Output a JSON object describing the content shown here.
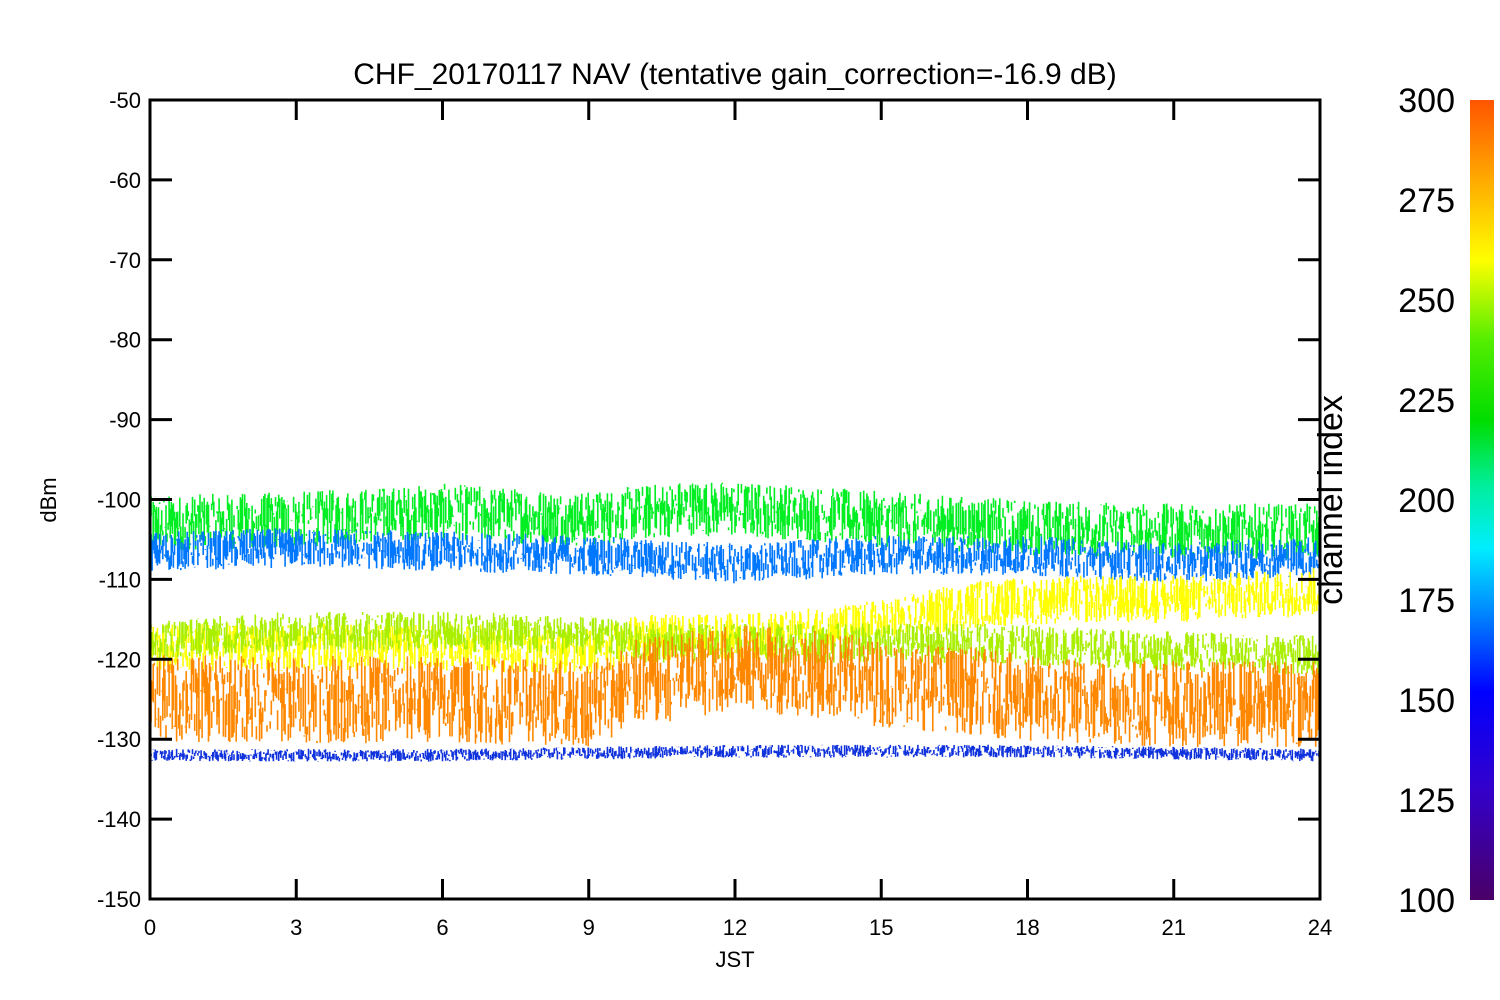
{
  "chart_data": {
    "type": "line",
    "title": "CHF_20170117 NAV (tentative gain_correction=-16.9 dB)",
    "xlabel": "JST",
    "ylabel": "dBm",
    "xlim": [
      0,
      24
    ],
    "ylim": [
      -150,
      -50
    ],
    "xticks": [
      "0",
      "3",
      "6",
      "9",
      "12",
      "15",
      "18",
      "21",
      "24"
    ],
    "yticks": [
      "-50",
      "-60",
      "-70",
      "-80",
      "-90",
      "-100",
      "-110",
      "-120",
      "-130",
      "-140",
      "-150"
    ],
    "colorbar": {
      "label": "channel index",
      "range": [
        100,
        300
      ],
      "ticks": [
        "300",
        "275",
        "250",
        "225",
        "200",
        "175",
        "150",
        "125",
        "100"
      ],
      "colormap": "rainbow"
    },
    "series": [
      {
        "channel": 235,
        "color": "#00ee22",
        "center": [
          [
            0,
            -103
          ],
          [
            3,
            -102.5
          ],
          [
            6,
            -101.5
          ],
          [
            9,
            -102.5
          ],
          [
            11,
            -101
          ],
          [
            13,
            -101.5
          ],
          [
            15,
            -102.5
          ],
          [
            18,
            -103.5
          ],
          [
            21,
            -104
          ],
          [
            24,
            -104
          ]
        ],
        "spread": 3.5
      },
      {
        "channel": 155,
        "color": "#0077ff",
        "center": [
          [
            0,
            -106.5
          ],
          [
            3,
            -106
          ],
          [
            6,
            -106.5
          ],
          [
            9,
            -107
          ],
          [
            12,
            -108
          ],
          [
            15,
            -107
          ],
          [
            18,
            -107
          ],
          [
            21,
            -108
          ],
          [
            24,
            -107
          ]
        ],
        "spread": 2.5
      },
      {
        "channel": 270,
        "color": "#ffff00",
        "center": [
          [
            0,
            -118.5
          ],
          [
            3,
            -118.5
          ],
          [
            6,
            -118.5
          ],
          [
            9,
            -119
          ],
          [
            10,
            -117.5
          ],
          [
            13,
            -117
          ],
          [
            15,
            -115.5
          ],
          [
            17,
            -113
          ],
          [
            19,
            -112.5
          ],
          [
            21,
            -112.5
          ],
          [
            24,
            -111.5
          ]
        ],
        "spread": 3
      },
      {
        "channel": 255,
        "color": "#aaee00",
        "center": [
          [
            0,
            -117.5
          ],
          [
            3,
            -116.5
          ],
          [
            6,
            -116.5
          ],
          [
            9,
            -117
          ],
          [
            10,
            -118
          ],
          [
            13,
            -118
          ],
          [
            15,
            -118
          ],
          [
            17,
            -118
          ],
          [
            19,
            -118.5
          ],
          [
            21,
            -119
          ],
          [
            24,
            -119.5
          ]
        ],
        "spread": 2.5
      },
      {
        "channel": 290,
        "color": "#ff8800",
        "center": [
          [
            0,
            -125
          ],
          [
            3,
            -125
          ],
          [
            6,
            -125
          ],
          [
            9,
            -125.5
          ],
          [
            10,
            -123
          ],
          [
            12,
            -121
          ],
          [
            14,
            -122
          ],
          [
            15,
            -123
          ],
          [
            17,
            -124
          ],
          [
            18,
            -125
          ],
          [
            21,
            -125.5
          ],
          [
            24,
            -125.5
          ]
        ],
        "spread": 5.5
      },
      {
        "channel": 140,
        "color": "#1133dd",
        "center": [
          [
            0,
            -132
          ],
          [
            6,
            -132
          ],
          [
            12,
            -131.5
          ],
          [
            18,
            -131.5
          ],
          [
            24,
            -132
          ]
        ],
        "spread": 0.8
      }
    ]
  }
}
